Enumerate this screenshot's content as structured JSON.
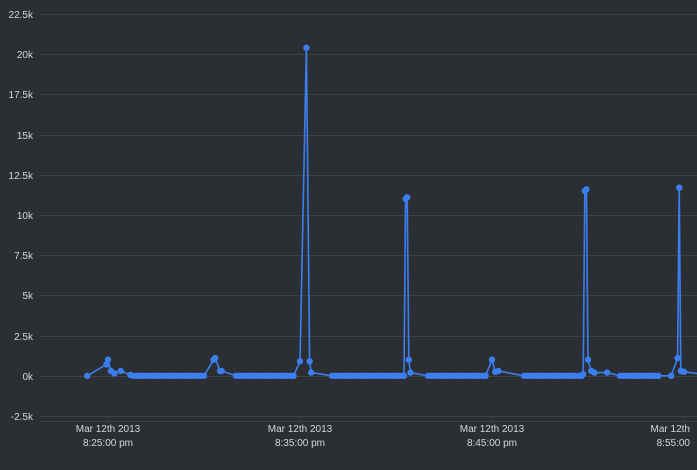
{
  "chart_data": {
    "type": "line",
    "title": "",
    "xlabel": "",
    "ylabel": "",
    "ylim": [
      -2500,
      22500
    ],
    "y_ticks": [
      -2500,
      0,
      2500,
      5000,
      7500,
      10000,
      12500,
      15000,
      17500,
      20000,
      22500
    ],
    "y_tick_labels": [
      "-2.5k",
      "0k",
      "2.5k",
      "5k",
      "7.5k",
      "10k",
      "12.5k",
      "15k",
      "17.5k",
      "20k",
      "22.5k"
    ],
    "xlim": [
      "2013-03-12 20:20:00",
      "2013-03-12 20:55:00"
    ],
    "x_ticks": [
      "2013-03-12 20:25:00",
      "2013-03-12 20:35:00",
      "2013-03-12 20:45:00",
      "2013-03-12 20:55:00"
    ],
    "x_tick_labels": [
      {
        "line1": "Mar 12th 2013",
        "line2": "8:25:00 pm"
      },
      {
        "line1": "Mar 12th 2013",
        "line2": "8:35:00 pm"
      },
      {
        "line1": "Mar 12th 2013",
        "line2": "8:45:00 pm"
      },
      {
        "line1": "Mar 12th",
        "line2": "8:55:00"
      }
    ],
    "grid": true,
    "legend": "none",
    "colors": {
      "background": "#2b2f33",
      "grid": "#3d4246",
      "series": "#3b7ef0",
      "text": "#d6d6d6"
    },
    "series": [
      {
        "x": [
          "20:23:55",
          "20:24:55",
          "20:25:00",
          "20:25:09",
          "20:25:20",
          "20:25:40",
          "20:26:10",
          "20:26:20",
          "20:26:30",
          "20:26:40",
          "20:26:50",
          "20:27:00",
          "20:27:10",
          "20:27:20",
          "20:27:30",
          "20:27:40",
          "20:27:50",
          "20:28:00",
          "20:28:10",
          "20:28:20",
          "20:28:30",
          "20:28:40",
          "20:28:50",
          "20:29:00",
          "20:29:10",
          "20:29:20",
          "20:29:30",
          "20:29:40",
          "20:29:50",
          "20:30:00",
          "20:30:30",
          "20:30:35",
          "20:30:50",
          "20:30:55",
          "20:31:40",
          "20:31:50",
          "20:32:00",
          "20:32:10",
          "20:32:20",
          "20:32:30",
          "20:32:40",
          "20:32:50",
          "20:33:00",
          "20:33:10",
          "20:33:20",
          "20:33:30",
          "20:33:40",
          "20:33:50",
          "20:34:00",
          "20:34:10",
          "20:34:20",
          "20:34:30",
          "20:34:40",
          "20:35:00",
          "20:35:20",
          "20:35:30",
          "20:35:35",
          "20:36:40",
          "20:36:50",
          "20:37:00",
          "20:37:10",
          "20:37:20",
          "20:37:30",
          "20:37:40",
          "20:37:50",
          "20:38:00",
          "20:38:10",
          "20:38:20",
          "20:38:30",
          "20:38:40",
          "20:38:50",
          "20:39:00",
          "20:39:10",
          "20:39:20",
          "20:39:30",
          "20:39:40",
          "20:39:50",
          "20:40:00",
          "20:40:10",
          "20:40:20",
          "20:40:25",
          "20:40:30",
          "20:40:35",
          "20:40:40",
          "20:40:45",
          "20:41:40",
          "20:41:50",
          "20:42:00",
          "20:42:10",
          "20:42:20",
          "20:42:30",
          "20:42:40",
          "20:42:50",
          "20:43:00",
          "20:43:10",
          "20:43:20",
          "20:43:30",
          "20:43:40",
          "20:43:50",
          "20:44:00",
          "20:44:10",
          "20:44:20",
          "20:44:30",
          "20:44:40",
          "20:45:00",
          "20:45:10",
          "20:45:20",
          "20:46:40",
          "20:46:50",
          "20:47:00",
          "20:47:10",
          "20:47:20",
          "20:47:30",
          "20:47:40",
          "20:47:50",
          "20:48:00",
          "20:48:10",
          "20:48:20",
          "20:48:30",
          "20:48:40",
          "20:48:50",
          "20:49:00",
          "20:49:10",
          "20:49:20",
          "20:49:30",
          "20:49:40",
          "20:49:45",
          "20:49:50",
          "20:49:55",
          "20:50:00",
          "20:50:10",
          "20:50:20",
          "20:51:00",
          "20:51:40",
          "20:51:50",
          "20:52:00",
          "20:52:10",
          "20:52:20",
          "20:52:30",
          "20:52:40",
          "20:52:50",
          "20:53:00",
          "20:53:10",
          "20:53:20",
          "20:53:30",
          "20:53:40",
          "20:54:20",
          "20:54:40",
          "20:54:45",
          "20:54:50",
          "20:55:00",
          "20:56:40"
        ],
        "values": [
          0,
          700,
          1000,
          300,
          150,
          300,
          50,
          0,
          0,
          0,
          0,
          0,
          0,
          0,
          0,
          0,
          0,
          0,
          0,
          0,
          0,
          0,
          0,
          0,
          0,
          0,
          0,
          0,
          0,
          0,
          1000,
          1100,
          300,
          300,
          0,
          0,
          0,
          0,
          0,
          0,
          0,
          0,
          0,
          0,
          0,
          0,
          0,
          0,
          0,
          0,
          0,
          0,
          0,
          900,
          20400,
          900,
          200,
          0,
          0,
          0,
          0,
          0,
          0,
          0,
          0,
          0,
          0,
          0,
          0,
          0,
          0,
          0,
          0,
          0,
          0,
          0,
          0,
          0,
          0,
          0,
          0,
          11000,
          11100,
          1000,
          200,
          0,
          0,
          0,
          0,
          0,
          0,
          0,
          0,
          0,
          0,
          0,
          0,
          0,
          0,
          0,
          0,
          0,
          0,
          0,
          1000,
          250,
          300,
          0,
          0,
          0,
          0,
          0,
          0,
          0,
          0,
          0,
          0,
          0,
          0,
          0,
          0,
          0,
          0,
          0,
          0,
          0,
          100,
          11500,
          11600,
          1000,
          300,
          200,
          200,
          0,
          0,
          0,
          0,
          0,
          0,
          0,
          0,
          0,
          0,
          0,
          0,
          0,
          0,
          1100,
          11700,
          300,
          250,
          0
        ]
      }
    ]
  }
}
